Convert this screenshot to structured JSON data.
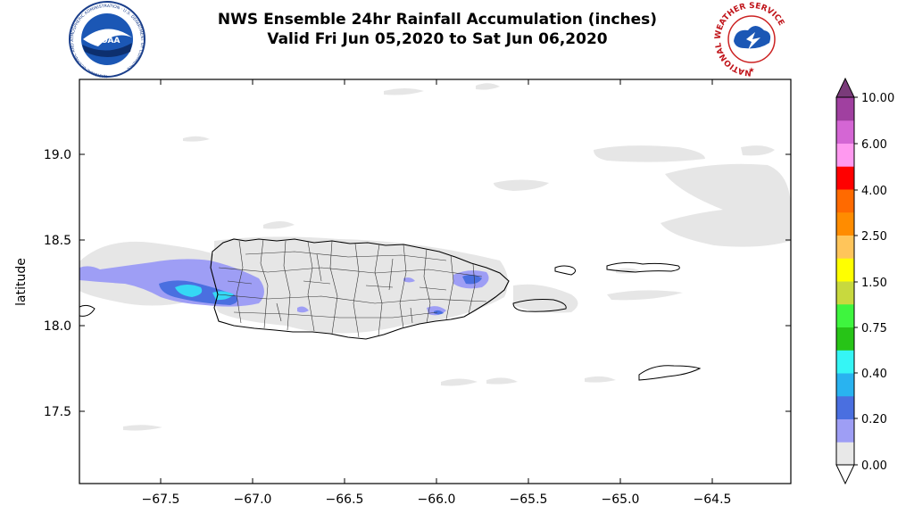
{
  "header": {
    "title_line1": "NWS Ensemble 24hr Rainfall Accumulation (inches)",
    "title_line2": "Valid Fri Jun 05,2020 to Sat Jun 06,2020",
    "logo_left": "NOAA",
    "logo_left_ring_text": "NATIONAL OCEANIC AND ATMOSPHERIC ADMINISTRATION · U.S. DEPARTMENT OF COMMERCE",
    "logo_right_ring_text": "NATIONAL WEATHER SERVICE"
  },
  "axes": {
    "ylabel": "latitude",
    "x_ticks": [
      "−67.5",
      "−67.0",
      "−66.5",
      "−66.0",
      "−65.5",
      "−65.0",
      "−64.5"
    ],
    "x_tick_values": [
      -67.5,
      -67.0,
      -66.5,
      -66.0,
      -65.5,
      -65.0,
      -64.5
    ],
    "y_ticks": [
      "19.0",
      "18.5",
      "18.0",
      "17.5"
    ],
    "y_tick_values": [
      19.0,
      18.5,
      18.0,
      17.5
    ],
    "xlim": [
      -67.92,
      -64.28
    ],
    "ylim": [
      17.06,
      19.44
    ]
  },
  "colorbar": {
    "labels": [
      "10.00",
      "6.00",
      "4.00",
      "2.50",
      "1.50",
      "0.75",
      "0.40",
      "0.20",
      "0.00"
    ],
    "colors": [
      "#e8e8e8",
      "#9e9ef5",
      "#4a6fe0",
      "#29b3f0",
      "#35f5f5",
      "#27c417",
      "#3ef53e",
      "#c8d93e",
      "#ffff00",
      "#ffc55a",
      "#ff8c00",
      "#ff6a00",
      "#ff0000",
      "#ff99f0",
      "#d466d4",
      "#a040a0"
    ],
    "extend_top_color": "#7a3b7a",
    "extend_bottom_color": "#ffffff"
  }
}
